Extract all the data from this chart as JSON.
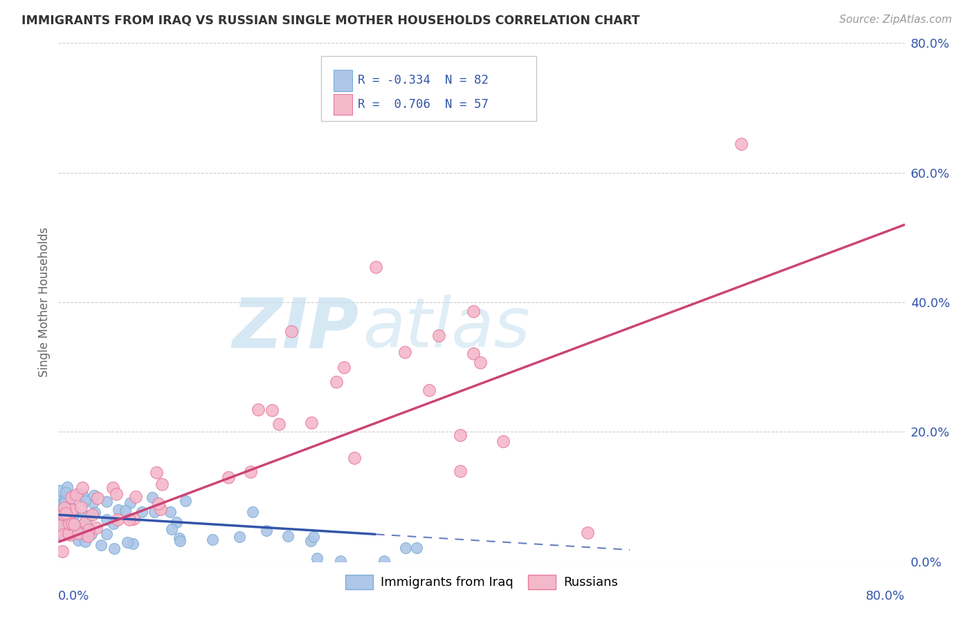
{
  "title": "IMMIGRANTS FROM IRAQ VS RUSSIAN SINGLE MOTHER HOUSEHOLDS CORRELATION CHART",
  "source": "Source: ZipAtlas.com",
  "ylabel": "Single Mother Households",
  "ytick_values": [
    0.0,
    0.2,
    0.4,
    0.6,
    0.8
  ],
  "ytick_labels": [
    "0.0%",
    "20.0%",
    "40.0%",
    "60.0%",
    "80.0%"
  ],
  "xlim": [
    0.0,
    0.8
  ],
  "ylim": [
    0.0,
    0.8
  ],
  "iraq_color": "#aec6e8",
  "iraq_edge_color": "#7aafd4",
  "russia_color": "#f4b8cb",
  "russia_edge_color": "#e87a9a",
  "iraq_trend_color": "#3355aa",
  "russia_trend_color": "#cc4477",
  "watermark_zip_color": "#c5dff0",
  "watermark_atlas_color": "#c5dff0",
  "background_color": "#ffffff",
  "grid_color": "#c8c8c8",
  "legend_border_color": "#c8c8c8",
  "text_color": "#3355aa",
  "title_color": "#333333",
  "source_color": "#999999"
}
